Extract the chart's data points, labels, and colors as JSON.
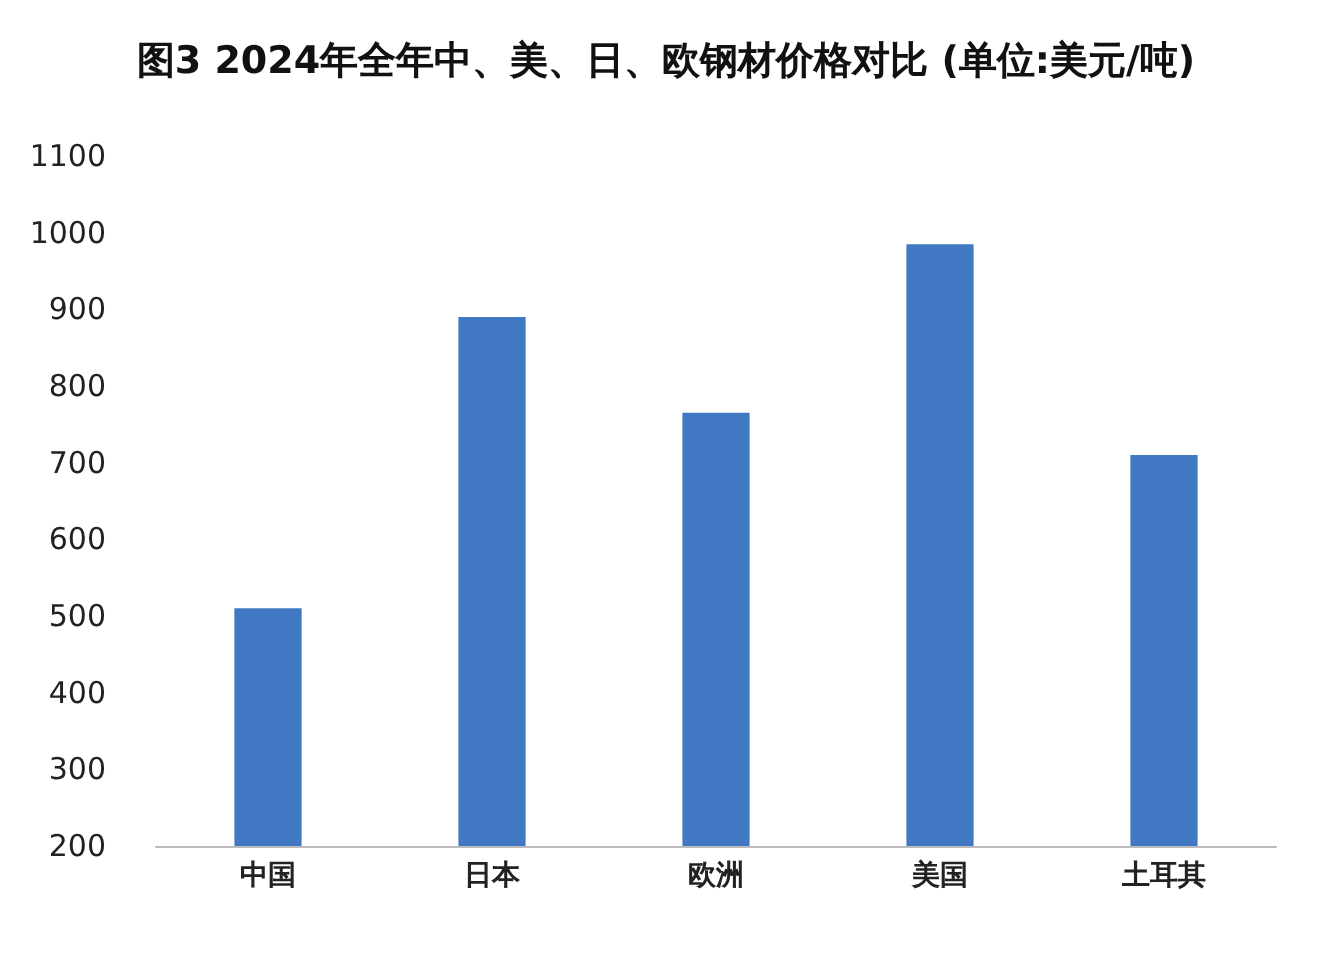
{
  "chart_data": {
    "type": "bar",
    "title": "图3 2024年全年中、美、日、欧钢材价格对比 (单位:美元/吨)",
    "categories": [
      "中国",
      "日本",
      "欧洲",
      "美国",
      "土耳其"
    ],
    "values": [
      510,
      890,
      765,
      985,
      710
    ],
    "color": "#4178c4",
    "ylim": [
      200,
      1100
    ],
    "yticks": [
      200,
      300,
      400,
      500,
      600,
      700,
      800,
      900,
      1000,
      1100
    ],
    "grid": false
  }
}
